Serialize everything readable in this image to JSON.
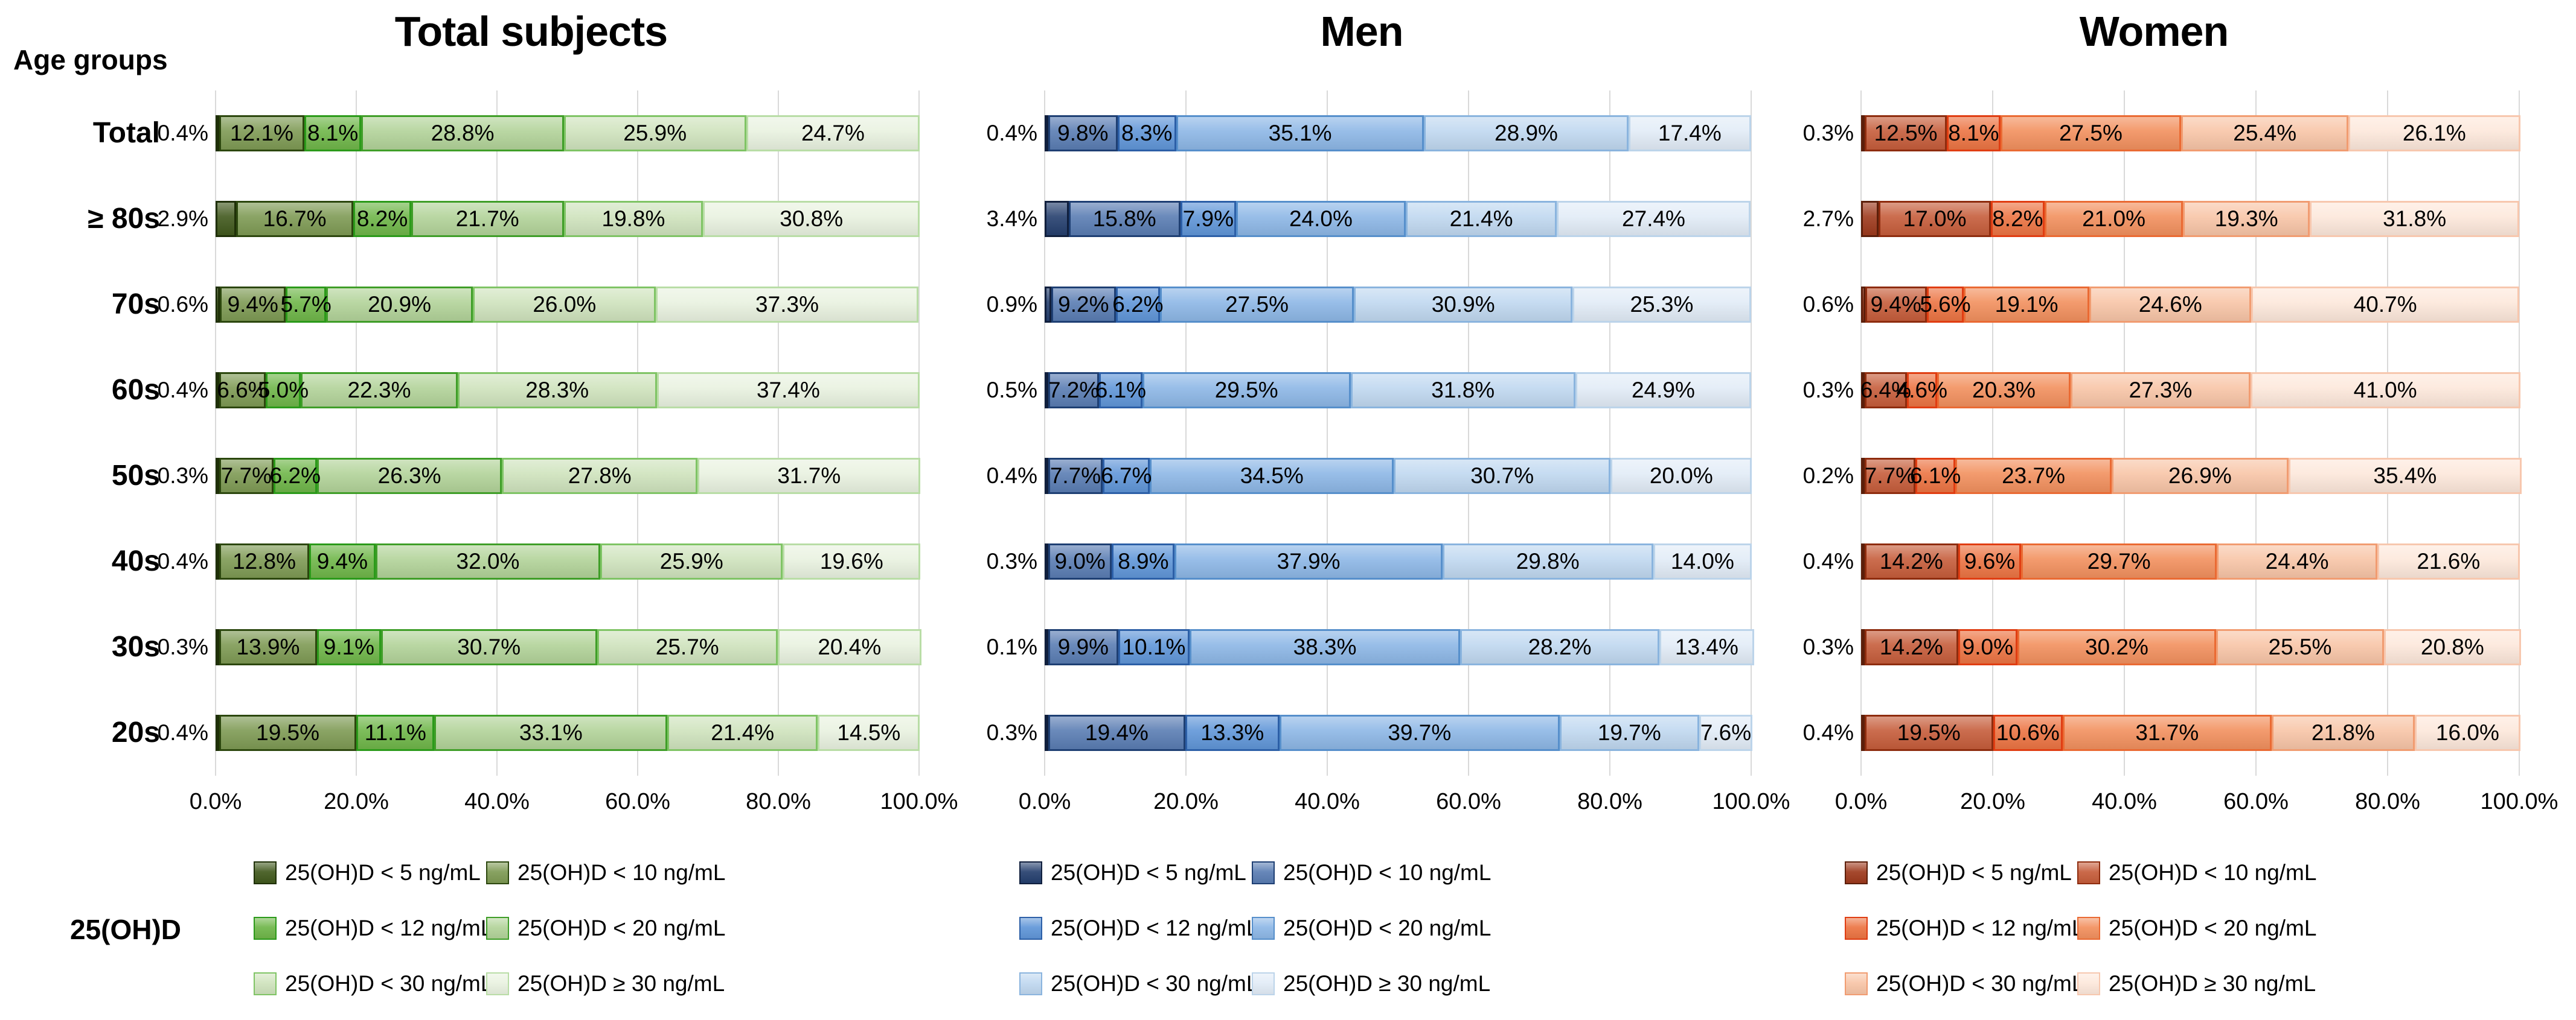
{
  "labels": {
    "age_groups": "Age groups",
    "ohd": "25(OH)D"
  },
  "chart_data": [
    {
      "type": "bar",
      "orientation": "horizontal_stacked",
      "title": "Total subjects",
      "group": "Total subjects",
      "xlim": [
        0,
        100
      ],
      "grid": true,
      "legend_position": "bottom",
      "categories": [
        "Total",
        "≥ 80s",
        "70s",
        "60s",
        "50s",
        "40s",
        "30s",
        "20s"
      ],
      "x_ticks": [
        "0.0%",
        "20.0%",
        "40.0%",
        "60.0%",
        "80.0%",
        "100.0%"
      ],
      "series": [
        {
          "name": "25(OH)D < 5 ng/mL",
          "fill": "#41591d",
          "border": "#1f3008",
          "values": [
            0.4,
            2.9,
            0.6,
            0.4,
            0.3,
            0.4,
            0.3,
            0.4
          ]
        },
        {
          "name": "25(OH)D < 10 ng/mL",
          "fill": "#7e9a54",
          "border": "#2c470e",
          "values": [
            12.1,
            16.7,
            9.4,
            6.6,
            7.7,
            12.8,
            13.9,
            19.5
          ]
        },
        {
          "name": "25(OH)D < 12 ng/mL",
          "fill": "#6fb649",
          "border": "#2b9a1a",
          "values": [
            8.1,
            8.2,
            5.7,
            5.0,
            6.2,
            9.4,
            9.1,
            11.1
          ]
        },
        {
          "name": "25(OH)D < 20 ng/mL",
          "fill": "#b2d399",
          "border": "#3f9e28",
          "values": [
            28.8,
            21.7,
            20.9,
            22.3,
            26.3,
            32.0,
            30.7,
            33.1
          ]
        },
        {
          "name": "25(OH)D < 30 ng/mL",
          "fill": "#cfe3bd",
          "border": "#7fc465",
          "values": [
            25.9,
            19.8,
            26.0,
            28.3,
            27.8,
            25.9,
            25.7,
            21.4
          ]
        },
        {
          "name": "25(OH)D ≥ 30 ng/mL",
          "fill": "#e9f2e0",
          "border": "#b9dda6",
          "values": [
            24.7,
            30.8,
            37.3,
            37.4,
            31.7,
            19.6,
            20.4,
            14.5
          ]
        }
      ]
    },
    {
      "type": "bar",
      "orientation": "horizontal_stacked",
      "title": "Men",
      "group": "Men",
      "xlim": [
        0,
        100
      ],
      "grid": true,
      "legend_position": "bottom",
      "categories": [
        "Total",
        "≥ 80s",
        "70s",
        "60s",
        "50s",
        "40s",
        "30s",
        "20s"
      ],
      "x_ticks": [
        "0.0%",
        "20.0%",
        "40.0%",
        "60.0%",
        "80.0%",
        "100.0%"
      ],
      "series": [
        {
          "name": "25(OH)D < 5 ng/mL",
          "fill": "#253f6e",
          "border": "#101f3d",
          "values": [
            0.4,
            3.4,
            0.9,
            0.5,
            0.4,
            0.3,
            0.1,
            0.3
          ]
        },
        {
          "name": "25(OH)D < 10 ng/mL",
          "fill": "#5a7db3",
          "border": "#1e3f73",
          "values": [
            9.8,
            15.8,
            9.2,
            7.2,
            7.7,
            9.0,
            9.9,
            19.4
          ]
        },
        {
          "name": "25(OH)D < 12 ng/mL",
          "fill": "#6096d8",
          "border": "#2c5fa7",
          "values": [
            8.3,
            7.9,
            6.2,
            6.1,
            6.7,
            8.9,
            10.1,
            13.3
          ]
        },
        {
          "name": "25(OH)D < 20 ng/mL",
          "fill": "#8db7e6",
          "border": "#568fcb",
          "values": [
            35.1,
            24.0,
            27.5,
            29.5,
            34.5,
            37.9,
            38.3,
            39.7
          ]
        },
        {
          "name": "25(OH)D < 30 ng/mL",
          "fill": "#c0d8f0",
          "border": "#8ab4de",
          "values": [
            28.9,
            21.4,
            30.9,
            31.8,
            30.7,
            29.8,
            28.2,
            19.7
          ]
        },
        {
          "name": "25(OH)D ≥ 30 ng/mL",
          "fill": "#e2ecf7",
          "border": "#bcd4ea",
          "values": [
            17.4,
            27.4,
            25.3,
            24.9,
            20.0,
            14.0,
            13.4,
            7.6
          ]
        }
      ]
    },
    {
      "type": "bar",
      "orientation": "horizontal_stacked",
      "title": "Women",
      "group": "Women",
      "xlim": [
        0,
        100
      ],
      "grid": true,
      "legend_position": "bottom",
      "categories": [
        "Total",
        "≥ 80s",
        "70s",
        "60s",
        "50s",
        "40s",
        "30s",
        "20s"
      ],
      "x_ticks": [
        "0.0%",
        "20.0%",
        "40.0%",
        "60.0%",
        "80.0%",
        "100.0%"
      ],
      "series": [
        {
          "name": "25(OH)D < 5 ng/mL",
          "fill": "#9e3a1d",
          "border": "#5c1f0a",
          "values": [
            0.3,
            2.7,
            0.6,
            0.3,
            0.2,
            0.4,
            0.3,
            0.4
          ]
        },
        {
          "name": "25(OH)D < 10 ng/mL",
          "fill": "#c65d3b",
          "border": "#8e2c0e",
          "values": [
            12.5,
            17.0,
            9.4,
            6.4,
            7.7,
            14.2,
            14.2,
            19.5
          ]
        },
        {
          "name": "25(OH)D < 12 ng/mL",
          "fill": "#ec7443",
          "border": "#e03d12",
          "values": [
            8.1,
            8.2,
            5.6,
            4.6,
            6.1,
            9.6,
            9.0,
            10.6
          ]
        },
        {
          "name": "25(OH)D < 20 ng/mL",
          "fill": "#f2905e",
          "border": "#ea6a33",
          "values": [
            27.5,
            21.0,
            19.1,
            20.3,
            23.7,
            29.7,
            30.2,
            31.7
          ]
        },
        {
          "name": "25(OH)D < 30 ng/mL",
          "fill": "#f8c5a7",
          "border": "#f19c71",
          "values": [
            25.4,
            19.3,
            24.6,
            27.3,
            26.9,
            24.4,
            25.5,
            21.8
          ]
        },
        {
          "name": "25(OH)D ≥ 30 ng/mL",
          "fill": "#fde8db",
          "border": "#f7c7ae",
          "values": [
            26.1,
            31.8,
            40.7,
            41.0,
            35.4,
            21.6,
            20.8,
            16.0
          ]
        }
      ]
    }
  ]
}
